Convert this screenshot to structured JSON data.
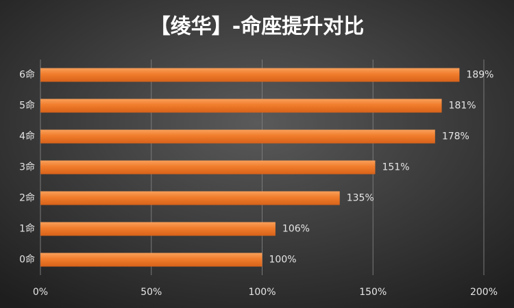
{
  "chart_data": {
    "type": "bar",
    "orientation": "horizontal",
    "title": "【绫华】-命座提升对比",
    "categories": [
      "6命",
      "5命",
      "4命",
      "3命",
      "2命",
      "1命",
      "0命"
    ],
    "values": [
      189,
      181,
      178,
      151,
      135,
      106,
      100
    ],
    "value_labels": [
      "189%",
      "181%",
      "178%",
      "151%",
      "135%",
      "106%",
      "100%"
    ],
    "color": "#f07c2c",
    "xlim": [
      0,
      200
    ],
    "xticks": [
      {
        "value": 0,
        "label": "0%"
      },
      {
        "value": 50,
        "label": "50%"
      },
      {
        "value": 100,
        "label": "100%"
      },
      {
        "value": 150,
        "label": "150%"
      },
      {
        "value": 200,
        "label": "200%"
      }
    ],
    "grid": true
  }
}
